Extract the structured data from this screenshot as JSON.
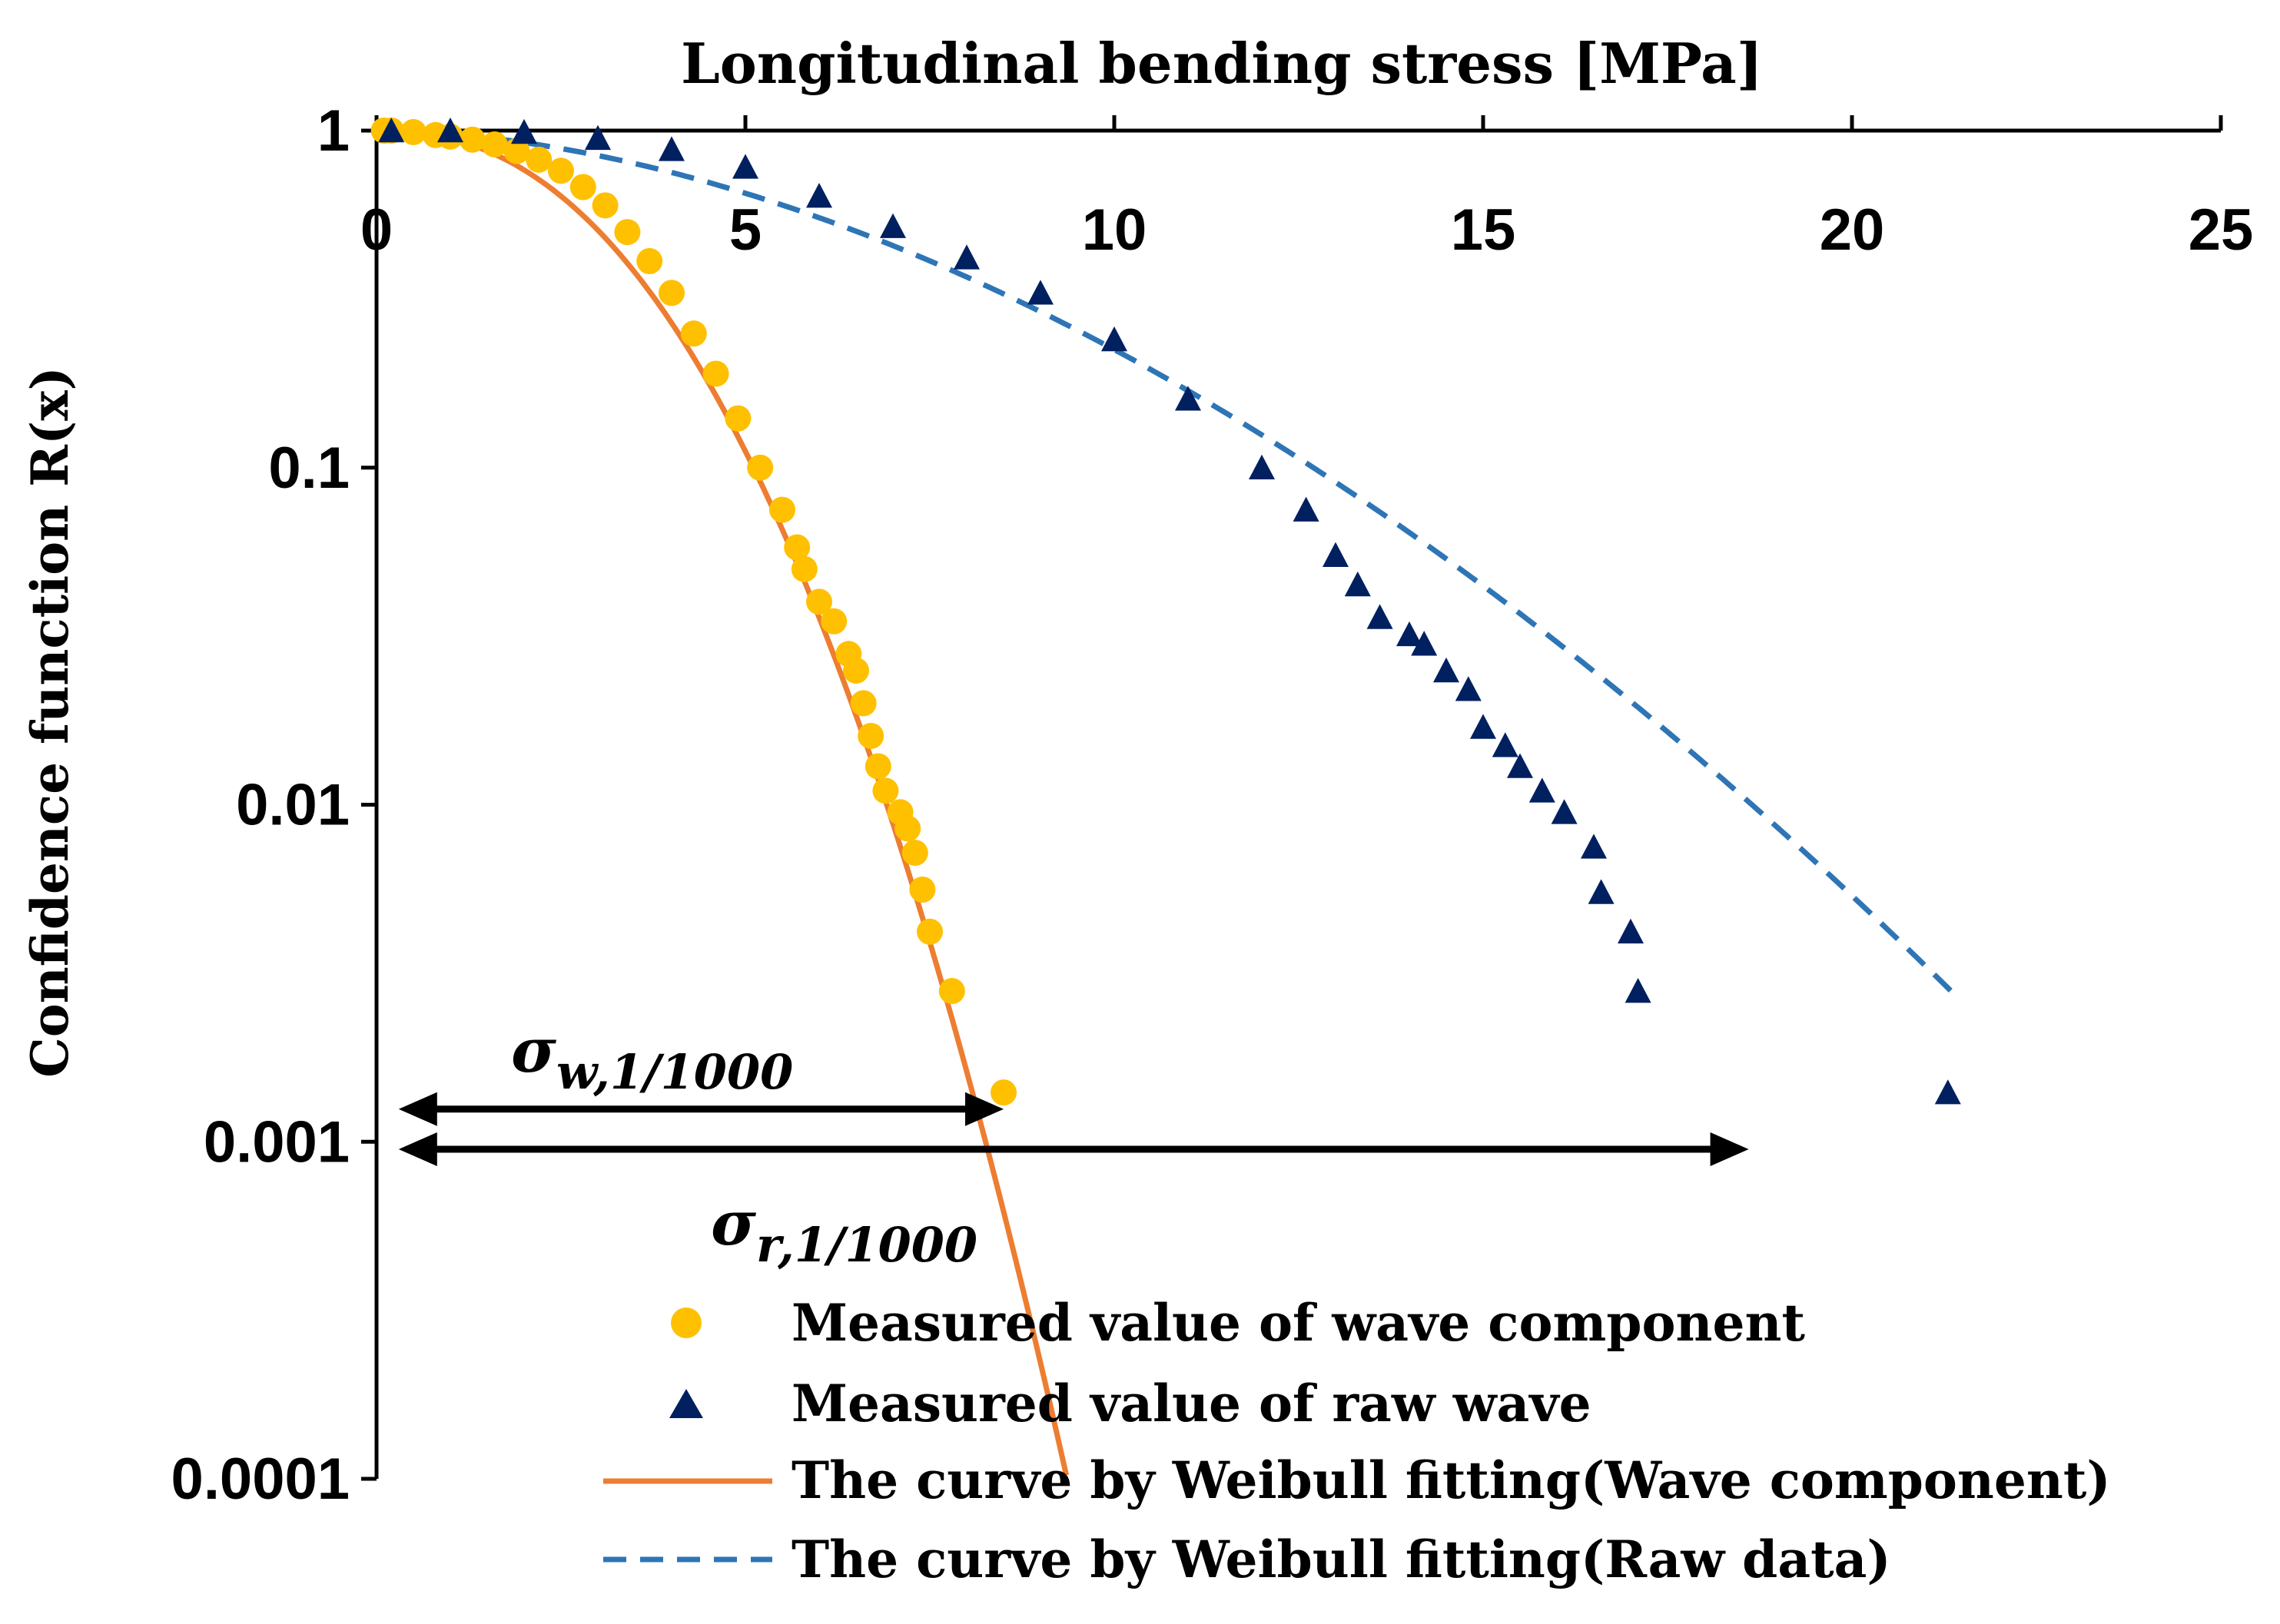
{
  "chart_data": {
    "type": "scatter",
    "title": "",
    "xlabel": "Longitudinal bending stress [MPa]",
    "ylabel": "Confidence function R(x)",
    "xlim": [
      0,
      25
    ],
    "ylim": [
      0.0001,
      1
    ],
    "x_axis_position": "top",
    "y_scale": "log",
    "grid": false,
    "legend_position": "bottom-right",
    "x_ticks": [
      "0",
      "5",
      "10",
      "15",
      "20",
      "25"
    ],
    "y_ticks": [
      "1",
      "0.1",
      "0.01",
      "0.001",
      "0.0001"
    ],
    "series": [
      {
        "name": "Measured value of wave component",
        "kind": "scatter",
        "marker": "circle",
        "color": "#FFC000",
        "points": [
          [
            0.1,
            1.0
          ],
          [
            0.2,
            1.0
          ],
          [
            0.5,
            0.99
          ],
          [
            0.8,
            0.97
          ],
          [
            1.0,
            0.96
          ],
          [
            1.3,
            0.94
          ],
          [
            1.6,
            0.91
          ],
          [
            1.9,
            0.87
          ],
          [
            2.2,
            0.82
          ],
          [
            2.5,
            0.76
          ],
          [
            2.8,
            0.68
          ],
          [
            3.1,
            0.6
          ],
          [
            3.4,
            0.5
          ],
          [
            3.7,
            0.41
          ],
          [
            4.0,
            0.33
          ],
          [
            4.3,
            0.25
          ],
          [
            4.6,
            0.19
          ],
          [
            4.9,
            0.14
          ],
          [
            5.2,
            0.1
          ],
          [
            5.5,
            0.075
          ],
          [
            5.7,
            0.058
          ],
          [
            5.8,
            0.05
          ],
          [
            6.0,
            0.04
          ],
          [
            6.2,
            0.035
          ],
          [
            6.4,
            0.028
          ],
          [
            6.5,
            0.025
          ],
          [
            6.6,
            0.02
          ],
          [
            6.7,
            0.016
          ],
          [
            6.8,
            0.013
          ],
          [
            6.9,
            0.011
          ],
          [
            7.1,
            0.0095
          ],
          [
            7.2,
            0.0085
          ],
          [
            7.3,
            0.0072
          ],
          [
            7.4,
            0.0056
          ],
          [
            7.5,
            0.0042
          ],
          [
            7.8,
            0.0028
          ],
          [
            8.5,
            0.0014
          ]
        ]
      },
      {
        "name": "Measured value of raw wave",
        "kind": "scatter",
        "marker": "triangle",
        "color": "#002060",
        "points": [
          [
            0.2,
            1.0
          ],
          [
            1.0,
            1.0
          ],
          [
            2.0,
            0.99
          ],
          [
            3.0,
            0.95
          ],
          [
            4.0,
            0.88
          ],
          [
            5.0,
            0.78
          ],
          [
            6.0,
            0.64
          ],
          [
            7.0,
            0.52
          ],
          [
            8.0,
            0.42
          ],
          [
            9.0,
            0.33
          ],
          [
            10.0,
            0.24
          ],
          [
            11.0,
            0.16
          ],
          [
            12.0,
            0.1
          ],
          [
            12.6,
            0.075
          ],
          [
            13.0,
            0.055
          ],
          [
            13.3,
            0.045
          ],
          [
            13.6,
            0.036
          ],
          [
            14.0,
            0.032
          ],
          [
            14.2,
            0.03
          ],
          [
            14.5,
            0.025
          ],
          [
            14.8,
            0.022
          ],
          [
            15.0,
            0.017
          ],
          [
            15.3,
            0.015
          ],
          [
            15.5,
            0.013
          ],
          [
            15.8,
            0.011
          ],
          [
            16.1,
            0.0095
          ],
          [
            16.5,
            0.0075
          ],
          [
            16.6,
            0.0055
          ],
          [
            17.0,
            0.0042
          ],
          [
            17.1,
            0.0028
          ],
          [
            21.3,
            0.0014
          ]
        ]
      },
      {
        "name": "The curve by Weibull fitting(Wave component)",
        "kind": "line",
        "dash": "solid",
        "color": "#ED7D31"
      },
      {
        "name": "The curve by Weibull fitting(Raw data)",
        "kind": "line",
        "dash": "dashed",
        "color": "#2E75B6"
      }
    ],
    "annotations": [
      {
        "symbol": "σ",
        "subscript": "w,1/1000",
        "arrow_from_x": 0.3,
        "arrow_to_x": 8.5,
        "arrow_y": 0.00125
      },
      {
        "symbol": "σ",
        "subscript": "r,1/1000",
        "arrow_from_x": 0.3,
        "arrow_to_x": 18.6,
        "arrow_y": 0.00095
      }
    ]
  }
}
